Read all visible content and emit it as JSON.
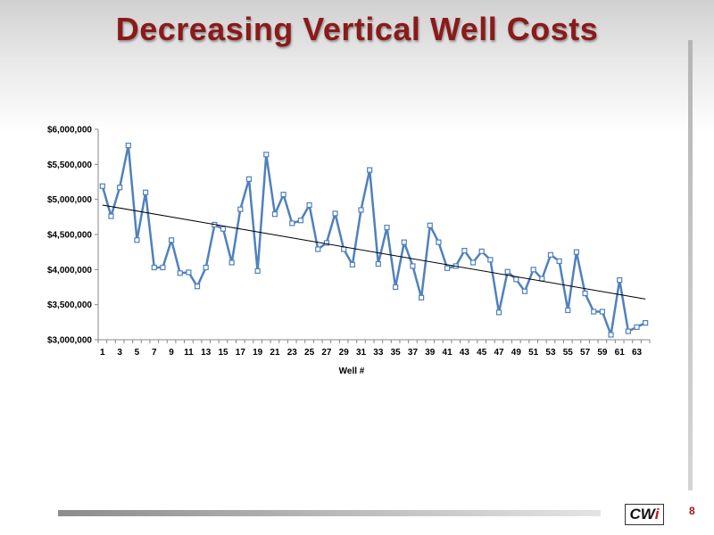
{
  "page": {
    "title": "Decreasing Vertical Well Costs",
    "page_number": "8",
    "logo_text": "CWi"
  },
  "colors": {
    "title": "#8b1a1a",
    "series_line": "#4f81bd",
    "trendline": "#000000"
  },
  "chart_data": {
    "type": "line",
    "title": "",
    "xlabel": "Well #",
    "ylabel": "",
    "ylim": [
      3000000,
      6000000
    ],
    "yticks": [
      3000000,
      3500000,
      4000000,
      4500000,
      5000000,
      5500000,
      6000000
    ],
    "ytick_labels": [
      "$3,000,000",
      "$3,500,000",
      "$4,000,000",
      "$4,500,000",
      "$5,000,000",
      "$5,500,000",
      "$6,000,000"
    ],
    "xtick_labels": [
      "1",
      "3",
      "5",
      "7",
      "9",
      "11",
      "13",
      "15",
      "17",
      "19",
      "21",
      "23",
      "25",
      "27",
      "29",
      "31",
      "33",
      "35",
      "37",
      "39",
      "41",
      "43",
      "45",
      "47",
      "49",
      "51",
      "53",
      "55",
      "57",
      "59",
      "61",
      "63"
    ],
    "x": [
      1,
      2,
      3,
      4,
      5,
      6,
      7,
      8,
      9,
      10,
      11,
      12,
      13,
      14,
      15,
      16,
      17,
      18,
      19,
      20,
      21,
      22,
      23,
      24,
      25,
      26,
      27,
      28,
      29,
      30,
      31,
      32,
      33,
      34,
      35,
      36,
      37,
      38,
      39,
      40,
      41,
      42,
      43,
      44,
      45,
      46,
      47,
      48,
      49,
      50,
      51,
      52,
      53,
      54,
      55,
      56,
      57,
      58,
      59,
      60,
      61,
      62,
      63,
      64
    ],
    "series": [
      {
        "values": [
          5190000,
          4760000,
          5170000,
          5770000,
          4420000,
          5100000,
          4030000,
          4030000,
          4420000,
          3950000,
          3960000,
          3760000,
          4030000,
          4640000,
          4580000,
          4100000,
          4860000,
          5290000,
          3980000,
          5640000,
          4790000,
          5070000,
          4660000,
          4700000,
          4920000,
          4290000,
          4380000,
          4800000,
          4290000,
          4070000,
          4850000,
          5420000,
          4080000,
          4600000,
          3750000,
          4390000,
          4050000,
          3600000,
          4630000,
          4390000,
          4020000,
          4050000,
          4270000,
          4100000,
          4260000,
          4140000,
          3390000,
          3970000,
          3860000,
          3690000,
          4000000,
          3870000,
          4210000,
          4120000,
          3420000,
          4250000,
          3660000,
          3400000,
          3400000,
          3070000,
          3850000,
          3120000,
          3180000,
          3240000
        ]
      }
    ],
    "trendline": {
      "x": [
        1,
        64
      ],
      "values": [
        4920000,
        3580000
      ]
    },
    "grid": false,
    "legend": "none"
  }
}
